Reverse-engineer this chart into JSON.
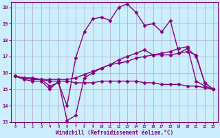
{
  "title": "",
  "xlabel": "Windchill (Refroidissement éolien,°C)",
  "ylabel": "",
  "bg_color": "#cceeff",
  "grid_color": "#aaaacc",
  "line_color": "#880088",
  "xlim": [
    -0.5,
    23.5
  ],
  "ylim": [
    13,
    20.3
  ],
  "yticks": [
    13,
    14,
    15,
    16,
    17,
    18,
    19,
    20
  ],
  "xticks": [
    0,
    1,
    2,
    3,
    4,
    5,
    6,
    7,
    8,
    9,
    10,
    11,
    12,
    13,
    14,
    15,
    16,
    17,
    18,
    19,
    20,
    21,
    22,
    23
  ],
  "series": [
    {
      "x": [
        0,
        1,
        2,
        3,
        4,
        5,
        6,
        7,
        8,
        9,
        10,
        11,
        12,
        13,
        14,
        15,
        16,
        17,
        18,
        19,
        20,
        21,
        22,
        23
      ],
      "y": [
        15.8,
        15.7,
        15.6,
        15.6,
        15.5,
        15.5,
        15.5,
        15.4,
        15.4,
        15.4,
        15.5,
        15.5,
        15.5,
        15.5,
        15.5,
        15.4,
        15.4,
        15.3,
        15.3,
        15.3,
        15.2,
        15.2,
        15.1,
        15.0
      ],
      "marker": "D",
      "markersize": 2.5,
      "linewidth": 1.0
    },
    {
      "x": [
        0,
        1,
        2,
        3,
        4,
        5,
        6,
        7,
        8,
        9,
        10,
        11,
        12,
        13,
        14,
        15,
        16,
        17,
        18,
        19,
        20,
        21,
        22,
        23
      ],
      "y": [
        15.8,
        15.7,
        15.7,
        15.6,
        15.6,
        15.6,
        15.6,
        15.7,
        15.9,
        16.1,
        16.3,
        16.5,
        16.6,
        16.7,
        16.9,
        17.0,
        17.1,
        17.1,
        17.1,
        17.2,
        17.3,
        17.1,
        15.4,
        15.0
      ],
      "marker": "D",
      "markersize": 2.5,
      "linewidth": 1.0
    },
    {
      "x": [
        0,
        1,
        2,
        3,
        4,
        5,
        6,
        7,
        8,
        9,
        10,
        11,
        12,
        13,
        14,
        15,
        16,
        17,
        18,
        19,
        20,
        21,
        22,
        23
      ],
      "y": [
        15.8,
        15.6,
        15.5,
        15.5,
        15.0,
        15.5,
        13.1,
        13.4,
        15.7,
        16.0,
        16.3,
        16.5,
        16.8,
        17.0,
        17.2,
        17.4,
        17.1,
        17.2,
        17.3,
        17.5,
        17.6,
        15.5,
        15.2,
        15.0
      ],
      "marker": "D",
      "markersize": 2.5,
      "linewidth": 1.0
    },
    {
      "x": [
        0,
        1,
        2,
        3,
        4,
        5,
        6,
        7,
        8,
        9,
        10,
        11,
        12,
        13,
        14,
        15,
        16,
        17,
        18,
        19,
        20,
        21,
        22,
        23
      ],
      "y": [
        15.8,
        15.7,
        15.6,
        15.6,
        15.2,
        15.4,
        14.0,
        16.9,
        18.5,
        19.3,
        19.4,
        19.2,
        20.0,
        20.2,
        19.7,
        18.9,
        19.0,
        18.5,
        19.2,
        17.2,
        17.5,
        17.0,
        15.4,
        15.0
      ],
      "marker": "D",
      "markersize": 2.5,
      "linewidth": 1.0
    }
  ]
}
